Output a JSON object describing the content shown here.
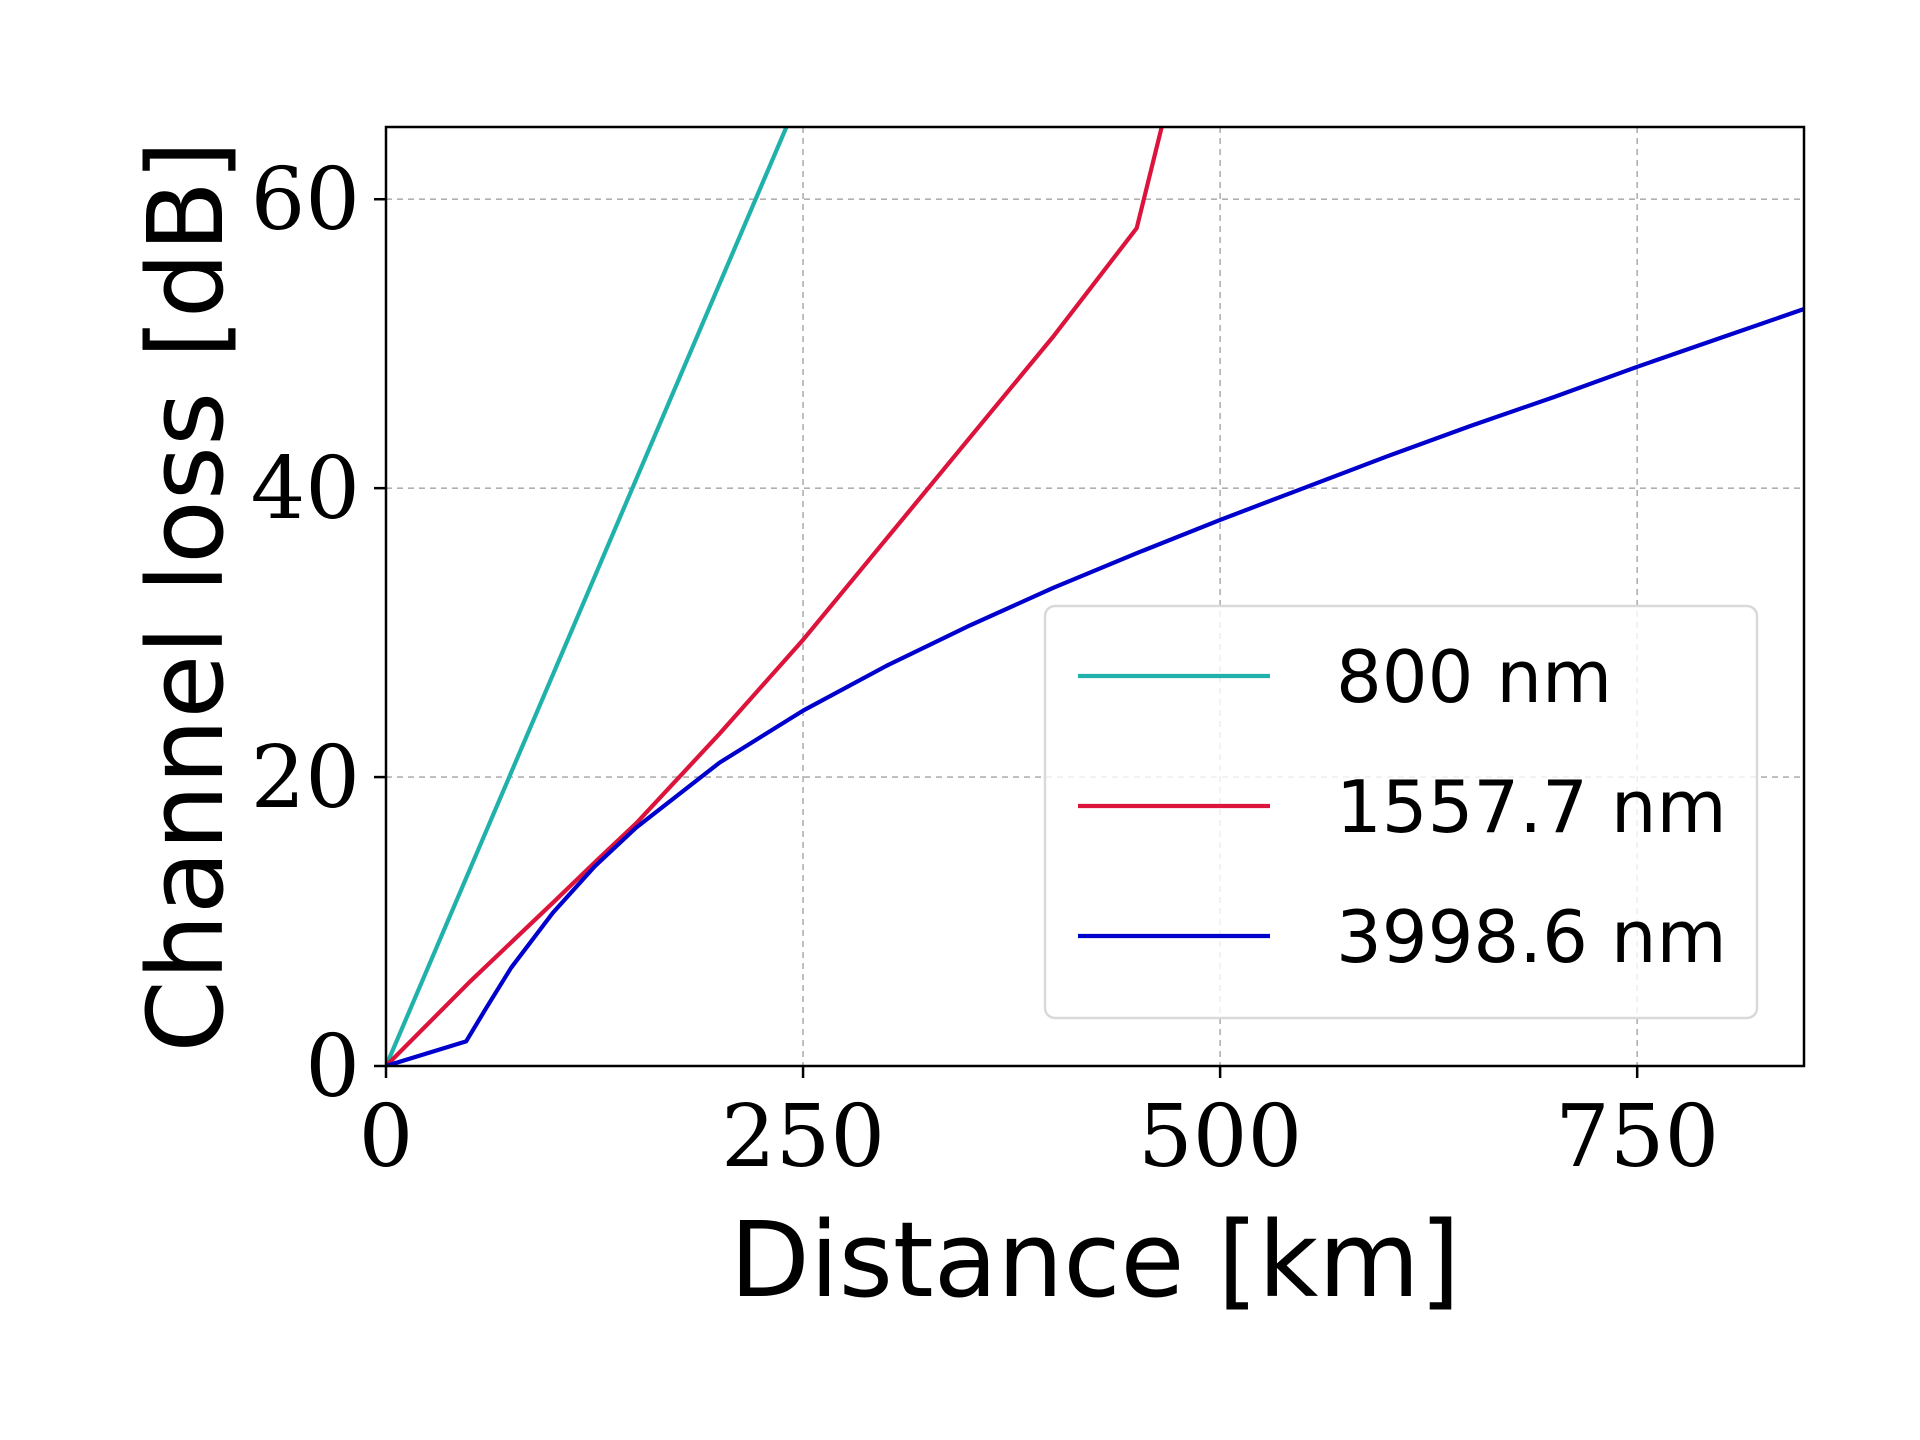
{
  "chart_data": {
    "type": "line",
    "xlabel": "Distance [km]",
    "ylabel": "Channel loss [dB]",
    "xlim": [
      0,
      850
    ],
    "ylim": [
      0,
      65
    ],
    "xticks": [
      0,
      250,
      500,
      750
    ],
    "yticks": [
      0,
      20,
      40,
      60
    ],
    "grid": true,
    "legend_position": "lower-right",
    "series": [
      {
        "name": "800 nm",
        "color": "#20b2aa",
        "x": [
          0,
          240
        ],
        "y": [
          0,
          65
        ]
      },
      {
        "name": "1557.7 nm",
        "color": "#dc143c",
        "x": [
          0,
          50,
          100,
          127,
          150,
          200,
          250,
          300,
          350,
          400,
          450,
          465
        ],
        "y": [
          0,
          5.8,
          11.3,
          14.3,
          16.8,
          23.0,
          29.5,
          36.5,
          43.5,
          50.5,
          58.0,
          65.0
        ]
      },
      {
        "name": "3998.6 nm",
        "color": "#0000cd",
        "x": [
          0,
          48,
          60,
          75,
          100,
          125,
          150,
          200,
          250,
          300,
          350,
          400,
          450,
          500,
          550,
          600,
          650,
          700,
          750,
          800,
          850
        ],
        "y": [
          0,
          1.7,
          4.0,
          6.8,
          10.6,
          13.8,
          16.5,
          21.0,
          24.6,
          27.7,
          30.5,
          33.1,
          35.5,
          37.8,
          40.0,
          42.2,
          44.3,
          46.3,
          48.4,
          50.4,
          52.4
        ]
      }
    ]
  }
}
